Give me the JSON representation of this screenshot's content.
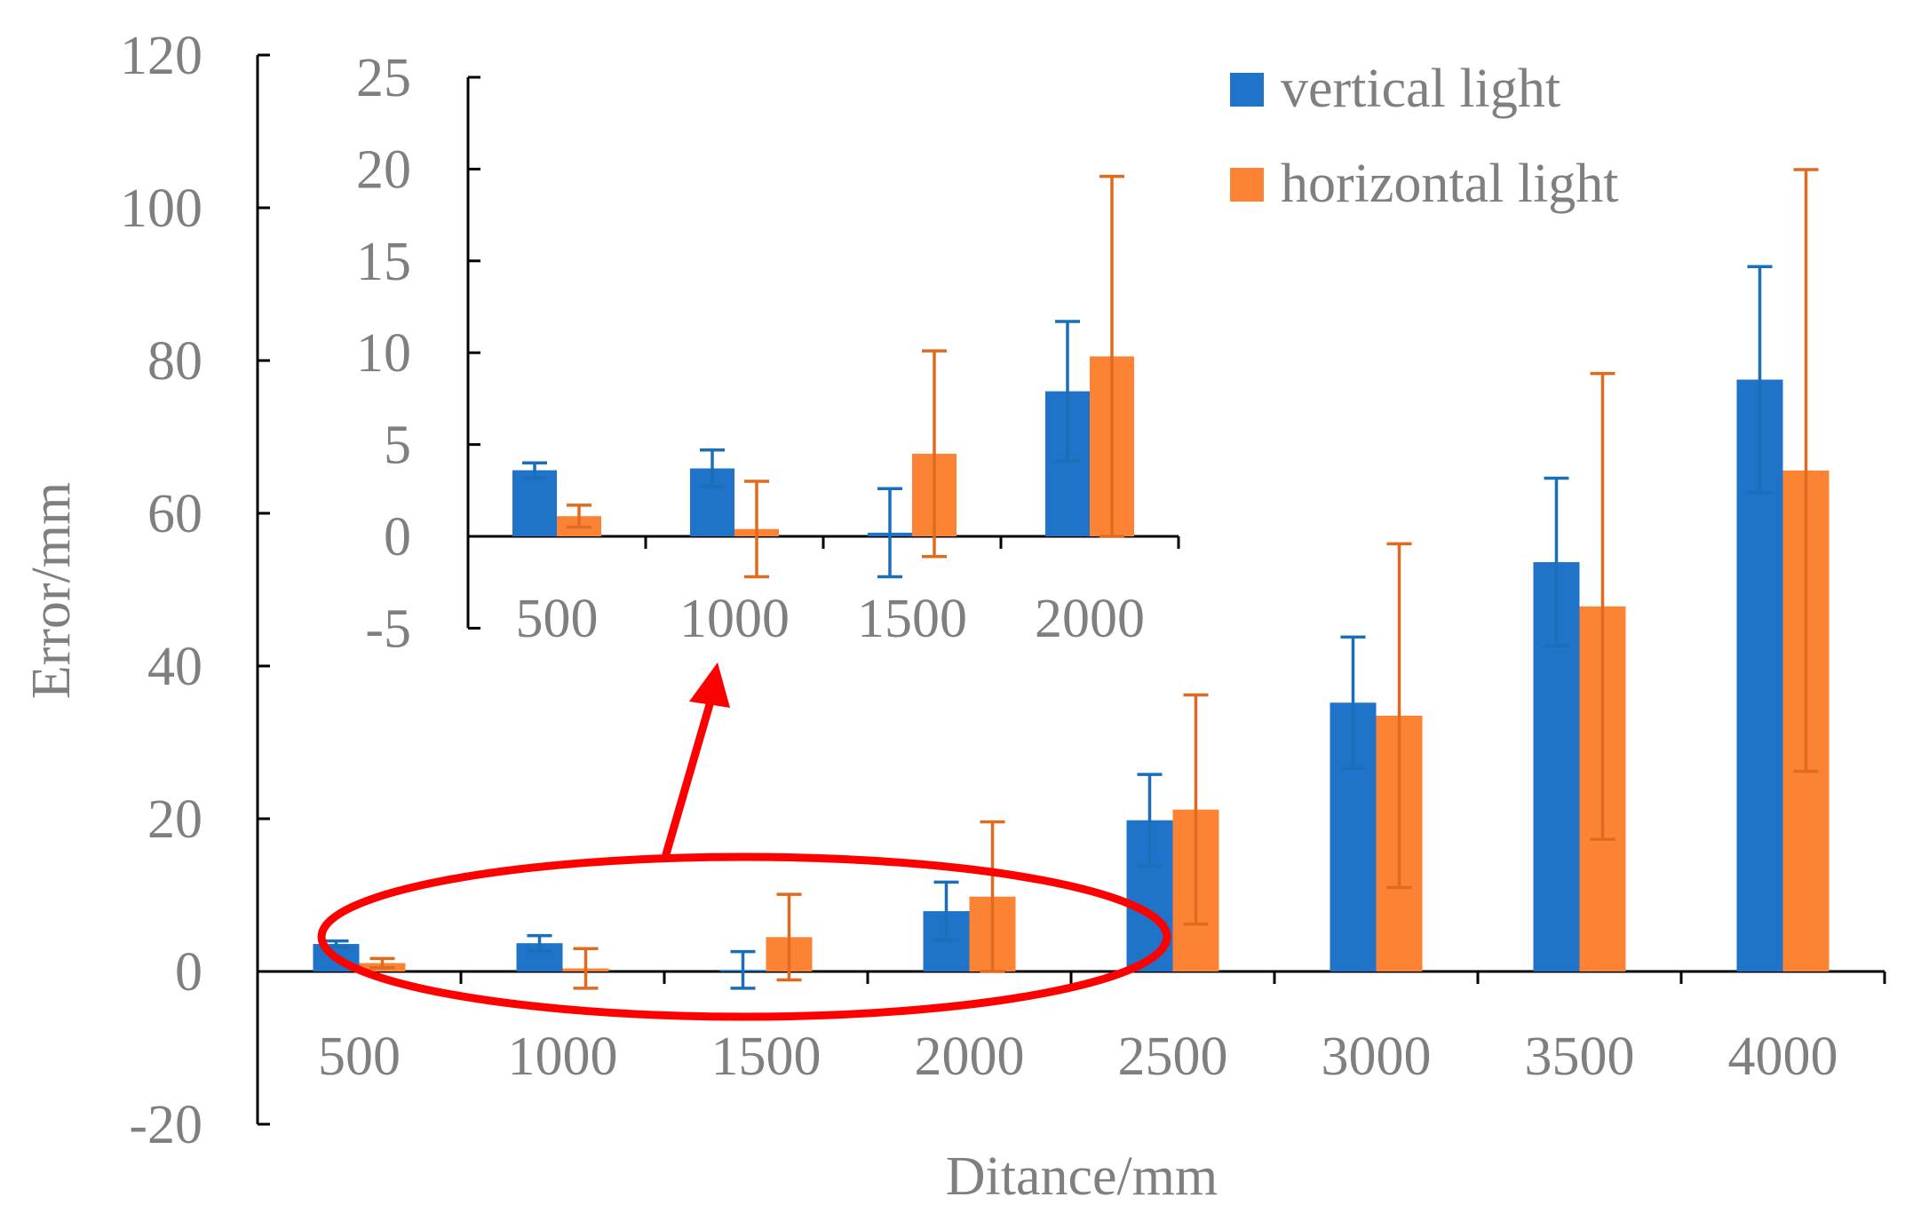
{
  "chart_data": {
    "type": "bar",
    "title": "",
    "xlabel": "Ditance/mm",
    "ylabel": "Error/mm",
    "categories": [
      "500",
      "1000",
      "1500",
      "2000",
      "2500",
      "3000",
      "3500",
      "4000"
    ],
    "ylim": [
      -20,
      120
    ],
    "yticks": [
      120,
      100,
      80,
      60,
      40,
      20,
      0,
      -20
    ],
    "grid": false,
    "legend_position": "top-right",
    "series": [
      {
        "name": "vertical light",
        "color": "#1f73c9",
        "error_color": "#1a6fb8",
        "values": [
          3.6,
          3.7,
          0.2,
          7.9,
          19.8,
          35.2,
          53.6,
          77.5
        ],
        "errors": [
          0.4,
          1.0,
          2.4,
          3.8,
          6.0,
          8.6,
          11.0,
          14.8
        ]
      },
      {
        "name": "horizontal light",
        "color": "#fc8333",
        "error_color": "#e06a1f",
        "values": [
          1.1,
          0.4,
          4.5,
          9.8,
          21.2,
          33.5,
          47.8,
          65.6
        ],
        "errors": [
          0.6,
          2.6,
          5.6,
          9.8,
          15.0,
          22.5,
          30.5,
          39.4
        ]
      }
    ],
    "inset": {
      "categories": [
        "500",
        "1000",
        "1500",
        "2000"
      ],
      "ylim": [
        -5,
        25
      ],
      "yticks": [
        25,
        20,
        15,
        10,
        5,
        0,
        -5
      ]
    },
    "annotation": "red ellipse highlighting the 500–2000 group with arrow pointing to the zoomed inset"
  }
}
